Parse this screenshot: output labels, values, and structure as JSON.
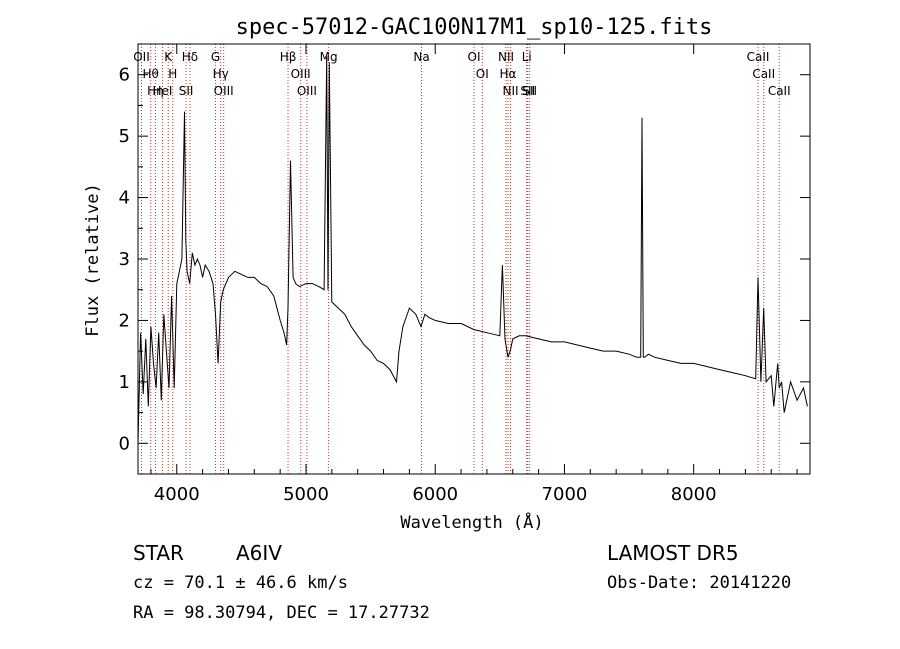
{
  "chart_data": {
    "type": "line",
    "title": "spec-57012-GAC100N17M1_sp10-125.fits",
    "xlabel": "Wavelength (Å)",
    "ylabel": "Flux (relative)",
    "xlim": [
      3700,
      8900
    ],
    "ylim": [
      -0.5,
      6.5
    ],
    "xticks": [
      4000,
      5000,
      6000,
      7000,
      8000
    ],
    "yticks": [
      0,
      1,
      2,
      3,
      4,
      5,
      6
    ],
    "grid": false,
    "line_color": "#000000",
    "marker_color": "#c0392b",
    "series": [
      {
        "x": [
          3700,
          3720,
          3740,
          3760,
          3780,
          3800,
          3820,
          3840,
          3860,
          3880,
          3900,
          3920,
          3940,
          3960,
          3980,
          4000,
          4020,
          4040,
          4060,
          4070,
          4080,
          4100,
          4120,
          4140,
          4160,
          4180,
          4200,
          4220,
          4250,
          4280,
          4300,
          4320,
          4340,
          4360,
          4380,
          4400,
          4450,
          4500,
          4550,
          4600,
          4650,
          4700,
          4750,
          4800,
          4830,
          4850,
          4861,
          4880,
          4900,
          4920,
          4950,
          5000,
          5050,
          5100,
          5140,
          5160,
          5170,
          5180,
          5200,
          5250,
          5300,
          5350,
          5400,
          5450,
          5500,
          5550,
          5600,
          5650,
          5700,
          5720,
          5750,
          5800,
          5850,
          5890,
          5920,
          5950,
          6000,
          6100,
          6200,
          6300,
          6400,
          6500,
          6520,
          6540,
          6563,
          6580,
          6600,
          6650,
          6700,
          6800,
          6900,
          7000,
          7100,
          7200,
          7300,
          7400,
          7500,
          7560,
          7590,
          7600,
          7610,
          7620,
          7650,
          7700,
          7800,
          7900,
          8000,
          8100,
          8200,
          8300,
          8400,
          8480,
          8498,
          8520,
          8542,
          8560,
          8600,
          8620,
          8650,
          8662,
          8680,
          8700,
          8750,
          8800,
          8850,
          8880
        ],
        "y": [
          0.0,
          1.8,
          0.8,
          1.7,
          0.6,
          1.9,
          1.3,
          0.9,
          1.8,
          0.7,
          2.1,
          1.5,
          0.9,
          2.4,
          0.9,
          2.6,
          2.8,
          3.0,
          5.4,
          3.3,
          2.8,
          2.6,
          3.1,
          2.9,
          3.0,
          2.9,
          2.7,
          2.9,
          2.8,
          2.6,
          2.1,
          1.3,
          2.3,
          2.5,
          2.6,
          2.7,
          2.8,
          2.75,
          2.7,
          2.7,
          2.6,
          2.55,
          2.4,
          2.0,
          1.8,
          1.6,
          2.2,
          4.6,
          2.7,
          2.6,
          2.55,
          2.6,
          2.6,
          2.55,
          2.5,
          6.3,
          2.5,
          6.2,
          2.3,
          2.2,
          2.1,
          1.9,
          1.75,
          1.6,
          1.5,
          1.35,
          1.3,
          1.2,
          1.0,
          1.5,
          1.9,
          2.2,
          2.1,
          1.9,
          2.1,
          2.05,
          2.0,
          1.95,
          1.95,
          1.85,
          1.8,
          1.75,
          2.9,
          1.7,
          1.4,
          1.5,
          1.7,
          1.75,
          1.75,
          1.7,
          1.65,
          1.65,
          1.6,
          1.55,
          1.5,
          1.5,
          1.45,
          1.4,
          1.4,
          5.3,
          1.4,
          1.4,
          1.45,
          1.4,
          1.35,
          1.3,
          1.3,
          1.25,
          1.2,
          1.15,
          1.1,
          1.05,
          2.7,
          1.0,
          2.2,
          1.0,
          1.1,
          0.6,
          1.3,
          0.9,
          1.0,
          0.5,
          1.0,
          0.7,
          0.9,
          0.6
        ]
      }
    ],
    "lines": [
      {
        "x": 3727,
        "labels": [
          "OII"
        ]
      },
      {
        "x": 3798,
        "labels": [
          "Hθ"
        ]
      },
      {
        "x": 3835,
        "labels": [
          "Hη"
        ]
      },
      {
        "x": 3889,
        "labels": [
          "HeI"
        ]
      },
      {
        "x": 3934,
        "labels": [
          "K"
        ]
      },
      {
        "x": 3969,
        "labels": [
          "H"
        ]
      },
      {
        "x": 4072,
        "labels": [
          "SII"
        ]
      },
      {
        "x": 4102,
        "labels": [
          "Hδ"
        ]
      },
      {
        "x": 4300,
        "labels": [
          "G"
        ]
      },
      {
        "x": 4340,
        "labels": [
          "Hγ"
        ]
      },
      {
        "x": 4363,
        "labels": [
          "OIII"
        ]
      },
      {
        "x": 4861,
        "labels": [
          "Hβ"
        ]
      },
      {
        "x": 4959,
        "labels": [
          "OIII"
        ]
      },
      {
        "x": 5007,
        "labels": [
          "OIII"
        ]
      },
      {
        "x": 5175,
        "labels": [
          "Mg"
        ]
      },
      {
        "x": 5894,
        "labels": [
          "Na"
        ]
      },
      {
        "x": 6300,
        "labels": [
          "OI"
        ]
      },
      {
        "x": 6364,
        "labels": [
          "OI"
        ]
      },
      {
        "x": 6548,
        "labels": [
          "NII"
        ]
      },
      {
        "x": 6563,
        "labels": [
          "Hα"
        ]
      },
      {
        "x": 6583,
        "labels": [
          "NII"
        ]
      },
      {
        "x": 6708,
        "labels": [
          "Li"
        ]
      },
      {
        "x": 6716,
        "labels": [
          "SII"
        ]
      },
      {
        "x": 6731,
        "labels": [
          "SII"
        ]
      },
      {
        "x": 8498,
        "labels": [
          "CaII"
        ]
      },
      {
        "x": 8542,
        "labels": [
          "CaII"
        ]
      },
      {
        "x": 8662,
        "labels": [
          "CaII"
        ]
      }
    ]
  },
  "info": {
    "class": "STAR",
    "subclass": "A6IV",
    "survey": "LAMOST  DR5",
    "cz": "cz = 70.1 ± 46.6 km/s",
    "obsdate": "Obs-Date: 20141220",
    "coords": "RA =  98.30794, DEC =  17.27732"
  }
}
